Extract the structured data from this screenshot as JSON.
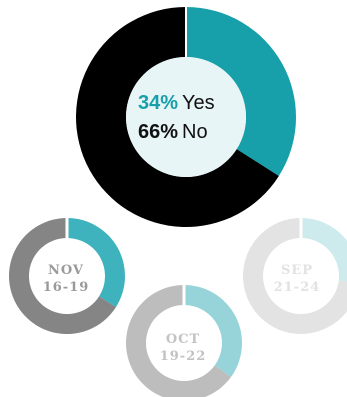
{
  "chart_data": [
    {
      "type": "pie",
      "slices": [
        {
          "label": "Yes",
          "value": 34,
          "display": "34%",
          "color": "#18a0aa"
        },
        {
          "label": "No",
          "value": 66,
          "display": "66%",
          "color": "#000000"
        }
      ],
      "center_color": "#e8f5f7"
    },
    {
      "type": "pie",
      "label_line1": "NOV",
      "label_line2": "16-19",
      "slices": [
        {
          "label": "Yes",
          "value": 34,
          "color": "#3fb3bd"
        },
        {
          "label": "No",
          "value": 66,
          "color": "#858585"
        }
      ],
      "label_color": "#9a9a9a"
    },
    {
      "type": "pie",
      "label_line1": "OCT",
      "label_line2": "19-22",
      "slices": [
        {
          "label": "Yes",
          "value": 35,
          "color": "#96d4da"
        },
        {
          "label": "No",
          "value": 65,
          "color": "#bdbdbd"
        }
      ],
      "label_color": "#c2c2c2"
    },
    {
      "type": "pie",
      "label_line1": "SEP",
      "label_line2": "21-24",
      "slices": [
        {
          "label": "Yes",
          "value": 27,
          "color": "#cdeaed"
        },
        {
          "label": "No",
          "value": 73,
          "color": "#e3e3e3"
        }
      ],
      "label_color": "#e2e2e2"
    }
  ]
}
